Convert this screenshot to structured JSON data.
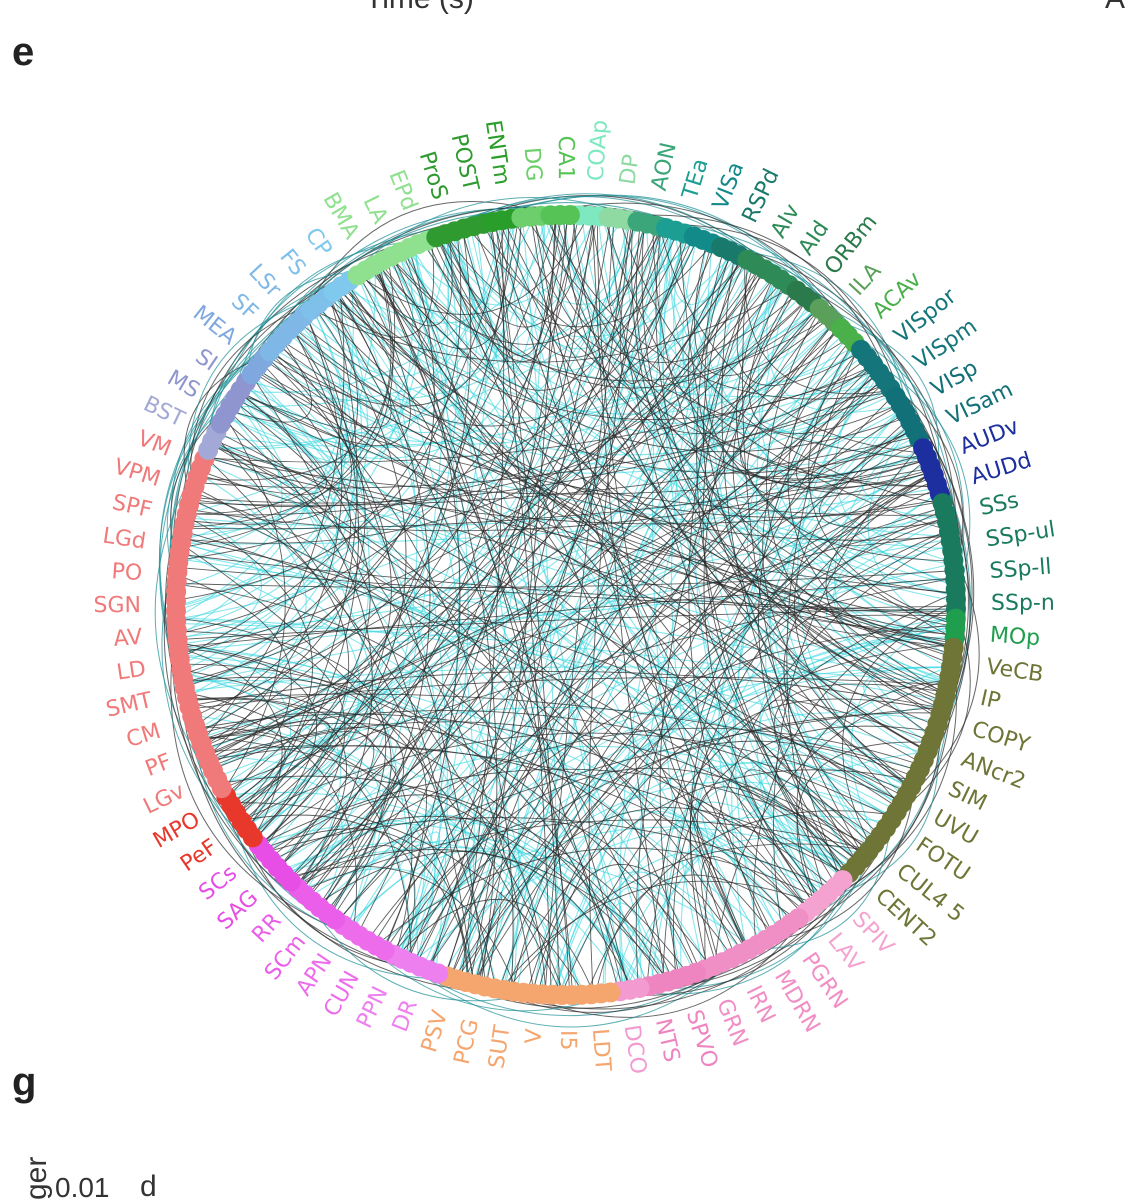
{
  "panel_letters": {
    "e": "e",
    "g": "g"
  },
  "cropped_text": {
    "top_center": "Time (s)",
    "top_right": "A",
    "bottom_left_rotated": "ger",
    "bottom_value": "0.01",
    "bottom_right_d": "d"
  },
  "colors": {
    "edge_dark": "#2a2a2a",
    "edge_cyan": "#35d6df",
    "edge_teal": "#1a8f96"
  },
  "regions": [
    {
      "label": "COAp",
      "color": "#7ee8c0"
    },
    {
      "label": "DP",
      "color": "#8fd9a2"
    },
    {
      "label": "AON",
      "color": "#3aa67a"
    },
    {
      "label": "TEa",
      "color": "#1d9e93"
    },
    {
      "label": "VISa",
      "color": "#138a8a"
    },
    {
      "label": "RSPd",
      "color": "#197a6b"
    },
    {
      "label": "AIv",
      "color": "#2e8b57"
    },
    {
      "label": "AId",
      "color": "#2e8b57"
    },
    {
      "label": "ORBm",
      "color": "#2a7a4c"
    },
    {
      "label": "ILA",
      "color": "#5aa05a"
    },
    {
      "label": "ACAv",
      "color": "#4ab04a"
    },
    {
      "label": "VISpor",
      "color": "#14757a"
    },
    {
      "label": "VISpm",
      "color": "#14757a"
    },
    {
      "label": "VISp",
      "color": "#117078"
    },
    {
      "label": "VISam",
      "color": "#117078"
    },
    {
      "label": "AUDv",
      "color": "#1d2f9e"
    },
    {
      "label": "AUDd",
      "color": "#1d2f9e"
    },
    {
      "label": "SSs",
      "color": "#1a7a5e"
    },
    {
      "label": "SSp-ul",
      "color": "#1a7a5e"
    },
    {
      "label": "SSp-ll",
      "color": "#1a7a5e"
    },
    {
      "label": "SSp-n",
      "color": "#1a7a5e"
    },
    {
      "label": "MOp",
      "color": "#1f9e4e"
    },
    {
      "label": "VeCB",
      "color": "#6e7536"
    },
    {
      "label": "IP",
      "color": "#6e7536"
    },
    {
      "label": "COPY",
      "color": "#6e7536"
    },
    {
      "label": "ANcr2",
      "color": "#6e7536"
    },
    {
      "label": "SIM",
      "color": "#6e7536"
    },
    {
      "label": "UVU",
      "color": "#6e7536"
    },
    {
      "label": "FOTU",
      "color": "#6e7536"
    },
    {
      "label": "CUL4 5",
      "color": "#6e7536"
    },
    {
      "label": "CENT2",
      "color": "#6e7536"
    },
    {
      "label": "SPIV",
      "color": "#f4a3d0"
    },
    {
      "label": "LAV",
      "color": "#f4a3d0"
    },
    {
      "label": "PGRN",
      "color": "#f08fc6"
    },
    {
      "label": "MDRN",
      "color": "#f08fc6"
    },
    {
      "label": "IRN",
      "color": "#f08fc6"
    },
    {
      "label": "GRN",
      "color": "#f08fc6"
    },
    {
      "label": "SPVO",
      "color": "#ee84c0"
    },
    {
      "label": "NTS",
      "color": "#ee84c0"
    },
    {
      "label": "DCO",
      "color": "#f39ad0"
    },
    {
      "label": "LDT",
      "color": "#f5a56e"
    },
    {
      "label": "I5",
      "color": "#f5a56e"
    },
    {
      "label": "V",
      "color": "#f5a56e"
    },
    {
      "label": "SUT",
      "color": "#f5a56e"
    },
    {
      "label": "PCG",
      "color": "#f5a56e"
    },
    {
      "label": "PSV",
      "color": "#f5a56e"
    },
    {
      "label": "DR",
      "color": "#ee7fee"
    },
    {
      "label": "PPN",
      "color": "#ee7fee"
    },
    {
      "label": "CUN",
      "color": "#ec6cec"
    },
    {
      "label": "APN",
      "color": "#ec6cec"
    },
    {
      "label": "SCm",
      "color": "#ea5eea"
    },
    {
      "label": "RR",
      "color": "#ea5eea"
    },
    {
      "label": "SAG",
      "color": "#e64ee6"
    },
    {
      "label": "SCs",
      "color": "#e64ee6"
    },
    {
      "label": "PeF",
      "color": "#e8382c"
    },
    {
      "label": "MPO",
      "color": "#e8382c"
    },
    {
      "label": "LGv",
      "color": "#f07a7a"
    },
    {
      "label": "PF",
      "color": "#f07a7a"
    },
    {
      "label": "CM",
      "color": "#f07a7a"
    },
    {
      "label": "SMT",
      "color": "#f07a7a"
    },
    {
      "label": "LD",
      "color": "#f07a7a"
    },
    {
      "label": "AV",
      "color": "#f07a7a"
    },
    {
      "label": "SGN",
      "color": "#f07a7a"
    },
    {
      "label": "PO",
      "color": "#f07a7a"
    },
    {
      "label": "LGd",
      "color": "#f07a7a"
    },
    {
      "label": "SPF",
      "color": "#f07a7a"
    },
    {
      "label": "VPM",
      "color": "#f07a7a"
    },
    {
      "label": "VM",
      "color": "#f07a7a"
    },
    {
      "label": "BST",
      "color": "#a3a9d6"
    },
    {
      "label": "MS",
      "color": "#8f96cf"
    },
    {
      "label": "SI",
      "color": "#8f96cf"
    },
    {
      "label": "MEA",
      "color": "#7fa8de"
    },
    {
      "label": "SF",
      "color": "#7fb8e6"
    },
    {
      "label": "LSr",
      "color": "#7fb8e6"
    },
    {
      "label": "FS",
      "color": "#7fc0ea"
    },
    {
      "label": "CP",
      "color": "#7fc8ee"
    },
    {
      "label": "BMA",
      "color": "#8fe08f"
    },
    {
      "label": "LA",
      "color": "#8fe08f"
    },
    {
      "label": "EPd",
      "color": "#8fe08f"
    },
    {
      "label": "ProS",
      "color": "#2f9a2f"
    },
    {
      "label": "POST",
      "color": "#2f9a2f"
    },
    {
      "label": "ENTm",
      "color": "#2a9e2a"
    },
    {
      "label": "DG",
      "color": "#6ccf6c"
    },
    {
      "label": "CA1",
      "color": "#56c356"
    }
  ]
}
